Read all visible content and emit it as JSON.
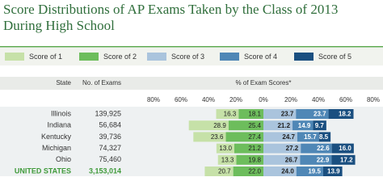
{
  "chart_data": {
    "type": "diverging-bar",
    "title": "Score Distributions of AP Exams Taken by the Class of 2013 During High School",
    "column_headers": [
      "State",
      "No. of Exams"
    ],
    "xlabel": "% of Exam Scores*",
    "categories": [
      "Illinois",
      "Indiana",
      "Kentucky",
      "Michigan",
      "Ohio",
      "UNITED STATES"
    ],
    "exams": [
      "139,925",
      "56,684",
      "39,736",
      "74,327",
      "75,460",
      "3,153,014"
    ],
    "xlim": [
      -80,
      80
    ],
    "xticks": [
      {
        "value": -80,
        "label": "80%"
      },
      {
        "value": -60,
        "label": "60%"
      },
      {
        "value": -40,
        "label": "40%"
      },
      {
        "value": -20,
        "label": "20%"
      },
      {
        "value": 0,
        "label": "0%"
      },
      {
        "value": 20,
        "label": "20%"
      },
      {
        "value": 40,
        "label": "40%"
      },
      {
        "value": 60,
        "label": "60%"
      },
      {
        "value": 80,
        "label": "80%"
      }
    ],
    "series": [
      {
        "name": "Score of 1",
        "color": "#c6e1a8",
        "values": [
          16.3,
          28.9,
          23.6,
          13.0,
          13.3,
          20.7
        ],
        "value_labels": [
          "16.3",
          "28.9",
          "23.6",
          "13.0",
          "13.3",
          "20.7"
        ]
      },
      {
        "name": "Score of 2",
        "color": "#6dbd5c",
        "values": [
          18.1,
          25.4,
          27.4,
          21.2,
          19.8,
          22.0
        ],
        "value_labels": [
          "18.1",
          "25.4",
          "27.4",
          "21.2",
          "19.8",
          "22.0"
        ]
      },
      {
        "name": "Score of 3",
        "color": "#aac4dd",
        "values": [
          23.7,
          21.2,
          24.7,
          27.2,
          26.7,
          24.0
        ],
        "value_labels": [
          "23.7",
          "21.2",
          "24.7",
          "27.2",
          "26.7",
          "24.0"
        ]
      },
      {
        "name": "Score of 4",
        "color": "#4f87b6",
        "values": [
          23.7,
          14.9,
          15.7,
          22.6,
          22.9,
          19.5
        ],
        "value_labels": [
          "23.7",
          "14.9",
          "15.7",
          "22.6",
          "22.9",
          "19.5"
        ]
      },
      {
        "name": "Score of 5",
        "color": "#1a4f80",
        "values": [
          18.2,
          9.7,
          8.5,
          16.0,
          17.2,
          13.9
        ],
        "value_labels": [
          "18.2",
          "9.7",
          "8.5",
          "16.0",
          "17.2",
          "13.9"
        ]
      }
    ]
  }
}
